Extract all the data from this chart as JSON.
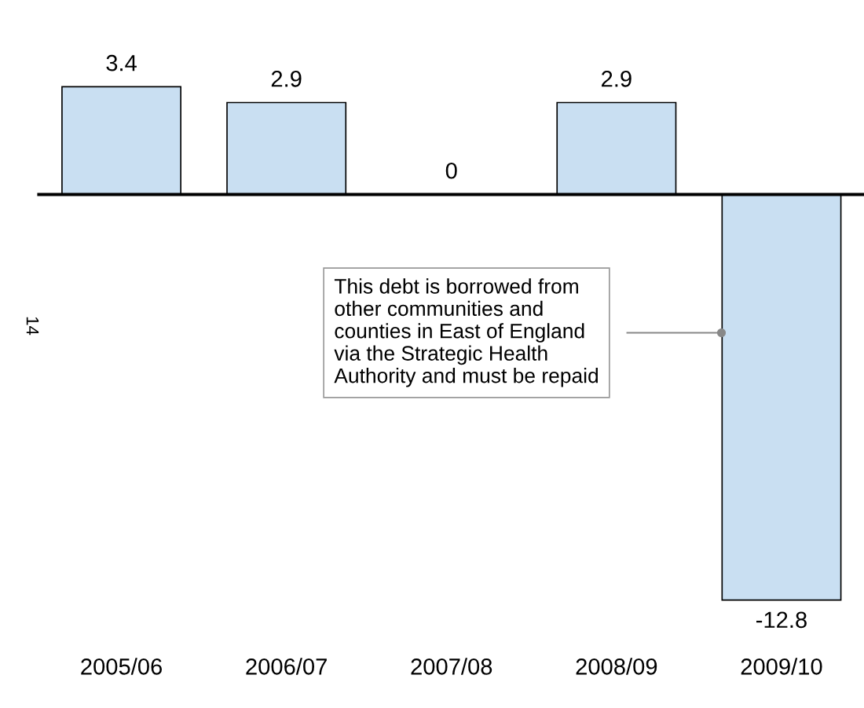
{
  "chart_data": {
    "type": "bar",
    "categories": [
      "2005/06",
      "2006/07",
      "2007/08",
      "2008/09",
      "2009/10"
    ],
    "values": [
      3.4,
      2.9,
      0,
      2.9,
      -12.8
    ],
    "color": "#c9dff2",
    "data_labels": true,
    "grid": false,
    "legend": false,
    "annotations": [
      "14",
      "This debt is borrowed from\nother communities and\ncounties in East of England\nvia the Strategic Health\nAuthority and must be repaid"
    ]
  }
}
